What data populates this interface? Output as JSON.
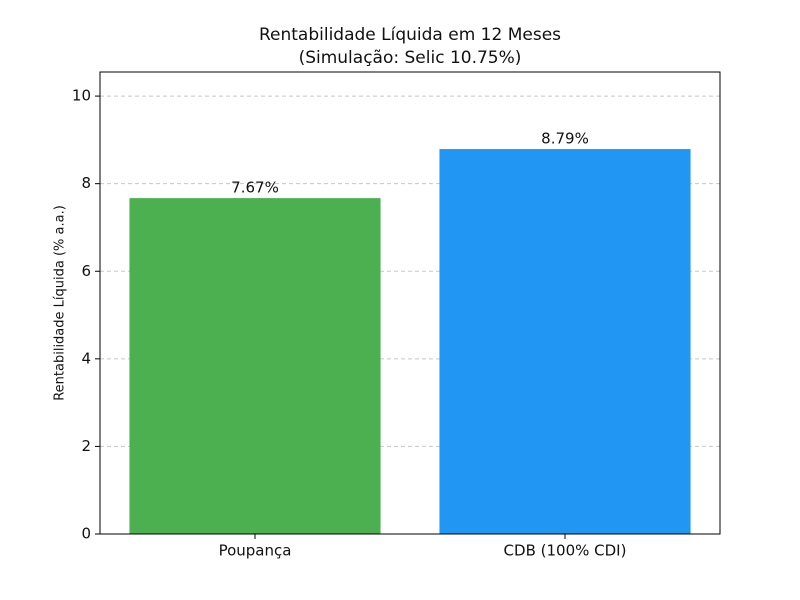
{
  "chart_data": {
    "type": "bar",
    "title": "Rentabilidade Líquida em 12 Meses",
    "subtitle": "(Simulação: Selic 10.75%)",
    "y_label": "Rentabilidade Líquida (% a.a.)",
    "categories": [
      "Poupança",
      "CDB (100% CDI)"
    ],
    "values": [
      7.67,
      8.79
    ],
    "value_labels": [
      "7.67%",
      "8.79%"
    ],
    "colors": [
      "#4caf50",
      "#2196f3"
    ],
    "ylim": [
      0,
      10.55
    ],
    "yticks": [
      0,
      2,
      4,
      6,
      8,
      10
    ],
    "grid": true
  }
}
